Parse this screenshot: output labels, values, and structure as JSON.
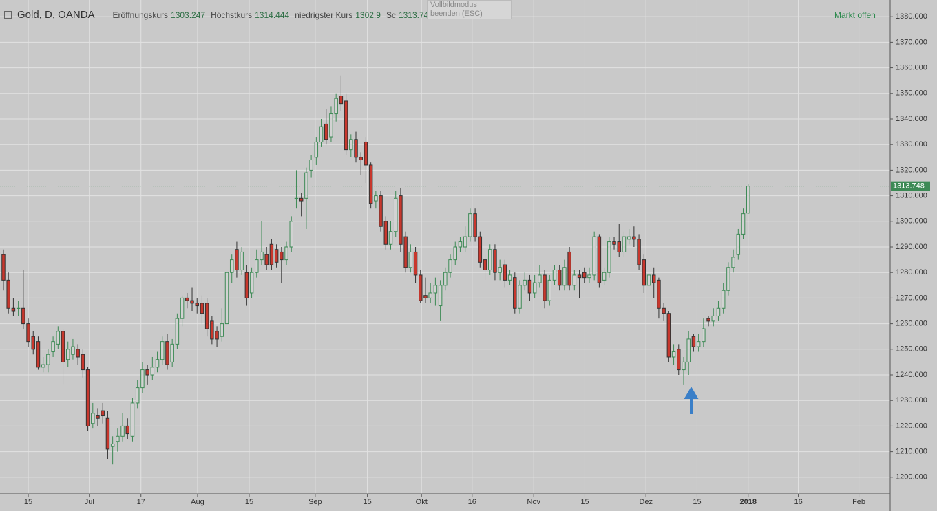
{
  "chart_data": {
    "type": "candlestick",
    "title": "Gold, D, OANDA",
    "legend_labels": [
      "Eröffnungskurs",
      "Höchstkurs",
      "niedrigster Kurs",
      "Sc"
    ],
    "status": "Markt offen",
    "tooltip": "Vollbildmodus beenden (ESC)",
    "up_color": "#3d8a55",
    "down_color": "#c8372d",
    "open": [
      1287,
      1277,
      1266,
      1266,
      1266,
      1260,
      1255,
      1253,
      1243,
      1244,
      1249,
      1252,
      1257,
      1246,
      1248,
      1250,
      1248,
      1242,
      1221,
      1224,
      1226,
      1223,
      1212,
      1214,
      1216,
      1220,
      1216,
      1229,
      1235,
      1242,
      1240,
      1243,
      1246,
      1253,
      1245,
      1252,
      1262,
      1270,
      1269,
      1268,
      1268,
      1268,
      1261,
      1257,
      1255,
      1260,
      1280,
      1289,
      1281,
      1280,
      1272,
      1280,
      1285,
      1287,
      1291,
      1289,
      1288,
      1285,
      1290,
      1309,
      1309,
      1309,
      1320,
      1325,
      1331,
      1338,
      1333,
      1342,
      1349,
      1347,
      1328,
      1332,
      1325,
      1331,
      1322,
      1308,
      1310,
      1300,
      1291,
      1296,
      1310,
      1294,
      1282,
      1288,
      1279,
      1271,
      1270,
      1272,
      1267,
      1275,
      1280,
      1285,
      1290,
      1290,
      1294,
      1303,
      1294,
      1285,
      1281,
      1289,
      1280,
      1283,
      1277,
      1278,
      1266,
      1275,
      1277,
      1272,
      1276,
      1279,
      1269,
      1277,
      1281,
      1275,
      1288,
      1275,
      1279,
      1280,
      1278,
      1279,
      1294,
      1277,
      1280,
      1292,
      1292,
      1288,
      1293,
      1294,
      1293,
      1285,
      1275,
      1279,
      1277,
      1266,
      1264,
      1247,
      1250,
      1242,
      1245,
      1255,
      1251,
      1253,
      1262,
      1261,
      1263,
      1266,
      1273,
      1282,
      1287,
      1295,
      1303.247
    ],
    "high": [
      1289,
      1280,
      1270,
      1269,
      1281,
      1262,
      1257,
      1255,
      1247,
      1250,
      1255,
      1259,
      1258,
      1253,
      1254,
      1252,
      1250,
      1243,
      1229,
      1227,
      1229,
      1226,
      1216,
      1219,
      1225,
      1223,
      1231,
      1238,
      1245,
      1244,
      1247,
      1249,
      1255,
      1256,
      1254,
      1264,
      1271,
      1272,
      1274,
      1270,
      1271,
      1270,
      1263,
      1259,
      1266,
      1282,
      1287,
      1292,
      1290,
      1283,
      1282,
      1289,
      1300,
      1290,
      1293,
      1291,
      1290,
      1292,
      1302,
      1320,
      1311,
      1321,
      1326,
      1333,
      1340,
      1344,
      1345,
      1350,
      1357,
      1350,
      1334,
      1335,
      1327,
      1333,
      1323,
      1312,
      1312,
      1302,
      1300,
      1312,
      1313,
      1296,
      1291,
      1290,
      1281,
      1278,
      1276,
      1278,
      1277,
      1282,
      1287,
      1292,
      1294,
      1298,
      1305,
      1305,
      1296,
      1287,
      1291,
      1291,
      1285,
      1285,
      1281,
      1280,
      1277,
      1280,
      1279,
      1279,
      1283,
      1281,
      1279,
      1283,
      1283,
      1285,
      1290,
      1281,
      1281,
      1282,
      1282,
      1296,
      1295,
      1282,
      1294,
      1294,
      1299,
      1296,
      1297,
      1298,
      1295,
      1287,
      1281,
      1282,
      1278,
      1268,
      1265,
      1252,
      1252,
      1247,
      1257,
      1256,
      1256,
      1262,
      1263,
      1266,
      1269,
      1276,
      1284,
      1289,
      1297,
      1305,
      1314.444
    ],
    "low": [
      1273,
      1264,
      1263,
      1263,
      1258,
      1251,
      1248,
      1242,
      1241,
      1241,
      1247,
      1250,
      1236,
      1243,
      1246,
      1244,
      1239,
      1218,
      1219,
      1220,
      1221,
      1207,
      1205,
      1210,
      1214,
      1215,
      1214,
      1227,
      1233,
      1236,
      1238,
      1241,
      1244,
      1242,
      1243,
      1250,
      1259,
      1266,
      1265,
      1264,
      1260,
      1255,
      1252,
      1251,
      1253,
      1258,
      1276,
      1278,
      1279,
      1267,
      1270,
      1278,
      1283,
      1281,
      1281,
      1282,
      1276,
      1283,
      1288,
      1305,
      1302,
      1297,
      1317,
      1322,
      1329,
      1330,
      1331,
      1339,
      1343,
      1326,
      1325,
      1323,
      1318,
      1315,
      1305,
      1305,
      1296,
      1289,
      1289,
      1294,
      1288,
      1280,
      1280,
      1276,
      1268,
      1268,
      1268,
      1267,
      1261,
      1273,
      1278,
      1283,
      1288,
      1288,
      1292,
      1292,
      1282,
      1277,
      1279,
      1277,
      1277,
      1274,
      1275,
      1264,
      1264,
      1273,
      1269,
      1270,
      1274,
      1266,
      1267,
      1275,
      1273,
      1273,
      1273,
      1273,
      1270,
      1276,
      1276,
      1277,
      1274,
      1275,
      1278,
      1289,
      1286,
      1286,
      1291,
      1290,
      1281,
      1272,
      1273,
      1270,
      1262,
      1261,
      1245,
      1244,
      1240,
      1236,
      1240,
      1249,
      1249,
      1251,
      1259,
      1259,
      1261,
      1264,
      1271,
      1280,
      1285,
      1293,
      1302.9
    ],
    "close": [
      1277,
      1266,
      1265,
      1266,
      1260,
      1253,
      1250,
      1243,
      1244,
      1248,
      1253,
      1257,
      1245,
      1250,
      1251,
      1247,
      1242,
      1220,
      1225,
      1223,
      1224,
      1211,
      1213,
      1216,
      1220,
      1217,
      1229,
      1235,
      1242,
      1240,
      1243,
      1246,
      1253,
      1244,
      1252,
      1262,
      1270,
      1269,
      1268,
      1267,
      1264,
      1258,
      1254,
      1254,
      1260,
      1280,
      1285,
      1281,
      1288,
      1270,
      1280,
      1285,
      1288,
      1283,
      1283,
      1284,
      1285,
      1290,
      1300,
      1309,
      1308,
      1319,
      1324,
      1331,
      1337,
      1332,
      1342,
      1348,
      1346,
      1328,
      1332,
      1325,
      1324,
      1322,
      1307,
      1310,
      1298,
      1291,
      1296,
      1309,
      1291,
      1282,
      1288,
      1279,
      1269,
      1270,
      1272,
      1275,
      1275,
      1280,
      1285,
      1290,
      1292,
      1294,
      1303,
      1294,
      1284,
      1281,
      1289,
      1280,
      1282,
      1277,
      1279,
      1266,
      1275,
      1277,
      1272,
      1276,
      1279,
      1269,
      1277,
      1281,
      1275,
      1282,
      1275,
      1279,
      1278,
      1278,
      1279,
      1294,
      1276,
      1280,
      1292,
      1291,
      1288,
      1294,
      1294,
      1293,
      1283,
      1275,
      1279,
      1276,
      1266,
      1264,
      1247,
      1249,
      1242,
      1245,
      1254,
      1251,
      1253,
      1258,
      1261,
      1263,
      1266,
      1273,
      1282,
      1286,
      1295,
      1303,
      1313.748
    ],
    "xlim": [
      -0.69,
      178.6
    ],
    "xticks": [
      {
        "value": 5.0,
        "label": "15"
      },
      {
        "value": 17.3,
        "label": "Jul"
      },
      {
        "value": 27.7,
        "label": "17"
      },
      {
        "value": 39.1,
        "label": "Aug"
      },
      {
        "value": 49.5,
        "label": "15"
      },
      {
        "value": 62.8,
        "label": "Sep"
      },
      {
        "value": 73.3,
        "label": "15"
      },
      {
        "value": 84.2,
        "label": "Okt"
      },
      {
        "value": 94.4,
        "label": "16"
      },
      {
        "value": 106.8,
        "label": "Nov"
      },
      {
        "value": 117.1,
        "label": "15"
      },
      {
        "value": 129.4,
        "label": "Dez"
      },
      {
        "value": 139.7,
        "label": "15"
      },
      {
        "value": 150,
        "label": "2018"
      },
      {
        "value": 160.1,
        "label": "16"
      },
      {
        "value": 172.3,
        "label": "Feb"
      }
    ],
    "ylim": [
      1193.5,
      1386.5
    ],
    "yticks": [
      {
        "value": 1200,
        "label": "1200.000"
      },
      {
        "value": 1210,
        "label": "1210.000"
      },
      {
        "value": 1220,
        "label": "1220.000"
      },
      {
        "value": 1230,
        "label": "1230.000"
      },
      {
        "value": 1240,
        "label": "1240.000"
      },
      {
        "value": 1250,
        "label": "1250.000"
      },
      {
        "value": 1260,
        "label": "1260.000"
      },
      {
        "value": 1270,
        "label": "1270.000"
      },
      {
        "value": 1280,
        "label": "1280.000"
      },
      {
        "value": 1290,
        "label": "1290.000"
      },
      {
        "value": 1300,
        "label": "1300.000"
      },
      {
        "value": 1310,
        "label": "1310.000"
      },
      {
        "value": 1320,
        "label": "1320.000"
      },
      {
        "value": 1330,
        "label": "1330.000"
      },
      {
        "value": 1340,
        "label": "1340.000"
      },
      {
        "value": 1350,
        "label": "1350.000"
      },
      {
        "value": 1360,
        "label": "1360.000"
      },
      {
        "value": 1370,
        "label": "1370.000"
      },
      {
        "value": 1380,
        "label": "1380.000"
      }
    ],
    "grid": true
  }
}
